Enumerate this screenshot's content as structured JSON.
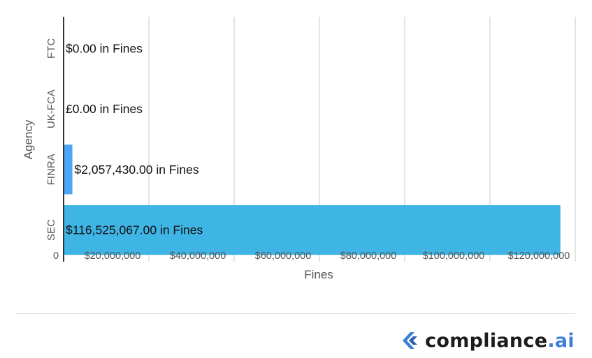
{
  "chart_data": {
    "type": "bar",
    "orientation": "horizontal",
    "categories": [
      "FTC",
      "UK-FCA",
      "FINRA",
      "SEC"
    ],
    "values": [
      0,
      0,
      2057430,
      116525067
    ],
    "data_labels": [
      "$0.00 in Fines",
      "£0.00 in Fines",
      "$2,057,430.00 in Fines",
      "$116,525,067.00 in Fines"
    ],
    "bar_colors": [
      "#3daee9",
      "#3daee9",
      "#4da6f5",
      "#3fb5e6"
    ],
    "xlabel": "Fines",
    "ylabel": "Agency",
    "xlim": [
      0,
      120000000
    ],
    "xticks": [
      0,
      20000000,
      40000000,
      60000000,
      80000000,
      100000000,
      120000000
    ],
    "xtick_labels": [
      "0",
      "$20,000,000",
      "$40,000,000",
      "$60,000,000",
      "$80,000,000",
      "$100,000,000",
      "$120,000,000"
    ],
    "grid": true,
    "legend": "none"
  },
  "brand": {
    "name": "compliance",
    "tld": ".ai",
    "icon": "compliance-ai-logo-icon",
    "accent_color": "#3f7fd6"
  }
}
